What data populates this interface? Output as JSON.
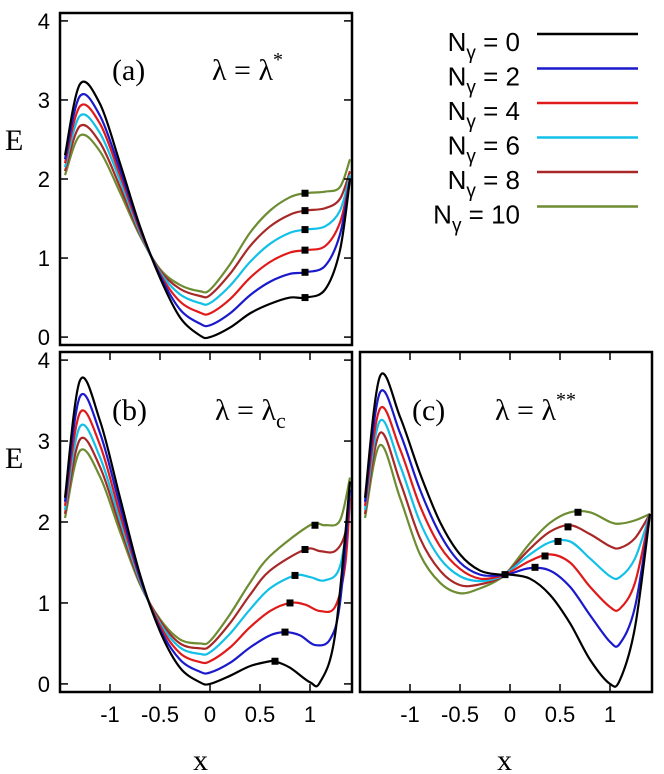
{
  "chart_data": [
    {
      "type": "line",
      "panel_label": "(a)",
      "annotation_prefix": "λ = λ",
      "annotation_sup": "*",
      "ylabel": "E",
      "xlim": [
        -1.5,
        1.42
      ],
      "ylim": [
        -0.1,
        4.1
      ],
      "yticks": [
        "0",
        "1",
        "2",
        "3",
        "4"
      ],
      "series": [
        {
          "name": "0",
          "x": [
            -1.45,
            -1.3,
            -1.1,
            -0.9,
            -0.7,
            -0.5,
            -0.3,
            -0.1,
            0.0,
            0.2,
            0.4,
            0.6,
            0.8,
            0.95,
            1.15,
            1.3,
            1.4
          ],
          "y": [
            2.3,
            3.2,
            2.95,
            2.2,
            1.4,
            0.75,
            0.25,
            0.02,
            0.0,
            0.12,
            0.3,
            0.42,
            0.5,
            0.5,
            0.6,
            1.1,
            2.0
          ],
          "max_x": 0.95,
          "max_y": 0.5
        },
        {
          "name": "2",
          "x": [
            -1.45,
            -1.3,
            -1.1,
            -0.9,
            -0.7,
            -0.5,
            -0.3,
            -0.1,
            0.0,
            0.2,
            0.4,
            0.6,
            0.8,
            0.95,
            1.15,
            1.3,
            1.4
          ],
          "y": [
            2.25,
            3.05,
            2.8,
            2.12,
            1.38,
            0.78,
            0.35,
            0.17,
            0.15,
            0.3,
            0.53,
            0.7,
            0.8,
            0.82,
            0.9,
            1.3,
            2.0
          ],
          "max_x": 0.95,
          "max_y": 0.82
        },
        {
          "name": "4",
          "x": [
            -1.45,
            -1.3,
            -1.1,
            -0.9,
            -0.7,
            -0.5,
            -0.3,
            -0.1,
            0.0,
            0.2,
            0.4,
            0.6,
            0.8,
            0.95,
            1.15,
            1.3,
            1.4
          ],
          "y": [
            2.2,
            2.92,
            2.7,
            2.05,
            1.35,
            0.8,
            0.45,
            0.31,
            0.3,
            0.48,
            0.75,
            0.95,
            1.07,
            1.1,
            1.15,
            1.45,
            2.0
          ],
          "max_x": 0.95,
          "max_y": 1.1
        },
        {
          "name": "6",
          "x": [
            -1.45,
            -1.3,
            -1.1,
            -0.9,
            -0.7,
            -0.5,
            -0.3,
            -0.1,
            0.0,
            0.2,
            0.4,
            0.6,
            0.8,
            0.95,
            1.15,
            1.3,
            1.4
          ],
          "y": [
            2.15,
            2.8,
            2.58,
            1.98,
            1.32,
            0.82,
            0.54,
            0.43,
            0.43,
            0.65,
            0.95,
            1.18,
            1.32,
            1.36,
            1.4,
            1.6,
            2.05
          ],
          "max_x": 0.95,
          "max_y": 1.36
        },
        {
          "name": "8",
          "x": [
            -1.45,
            -1.3,
            -1.1,
            -0.9,
            -0.7,
            -0.5,
            -0.3,
            -0.1,
            0.0,
            0.2,
            0.4,
            0.6,
            0.8,
            0.95,
            1.15,
            1.3,
            1.4
          ],
          "y": [
            2.1,
            2.67,
            2.46,
            1.9,
            1.3,
            0.84,
            0.61,
            0.52,
            0.53,
            0.8,
            1.15,
            1.4,
            1.55,
            1.6,
            1.63,
            1.75,
            2.1
          ],
          "max_x": 0.95,
          "max_y": 1.6
        },
        {
          "name": "10",
          "x": [
            -1.45,
            -1.3,
            -1.1,
            -0.9,
            -0.7,
            -0.5,
            -0.3,
            -0.1,
            0.0,
            0.2,
            0.4,
            0.6,
            0.8,
            0.95,
            1.15,
            1.3,
            1.4
          ],
          "y": [
            2.05,
            2.55,
            2.35,
            1.83,
            1.28,
            0.86,
            0.66,
            0.58,
            0.6,
            0.92,
            1.32,
            1.6,
            1.77,
            1.82,
            1.84,
            1.9,
            2.25
          ],
          "max_x": 0.95,
          "max_y": 1.82
        }
      ]
    },
    {
      "type": "line",
      "panel_label": "(b)",
      "annotation_prefix": "λ = λ",
      "annotation_sub": "c",
      "ylabel": "E",
      "xlim": [
        -1.5,
        1.42
      ],
      "ylim": [
        -0.1,
        4.1
      ],
      "yticks": [
        "0",
        "1",
        "2",
        "3",
        "4"
      ],
      "xticks": [
        "-1",
        "-0.5",
        "0",
        "0.5",
        "1"
      ],
      "series": [
        {
          "name": "0",
          "x": [
            -1.45,
            -1.3,
            -1.1,
            -0.9,
            -0.7,
            -0.5,
            -0.3,
            -0.1,
            0.0,
            0.2,
            0.4,
            0.6,
            0.65,
            0.8,
            1.0,
            1.1,
            1.25,
            1.4
          ],
          "y": [
            2.3,
            3.75,
            3.25,
            2.3,
            1.35,
            0.65,
            0.2,
            0.02,
            0.0,
            0.1,
            0.22,
            0.28,
            0.28,
            0.2,
            0.02,
            0.02,
            0.6,
            2.5
          ],
          "max_x": 0.65,
          "max_y": 0.28
        },
        {
          "name": "2",
          "x": [
            -1.45,
            -1.3,
            -1.1,
            -0.9,
            -0.7,
            -0.5,
            -0.3,
            -0.1,
            0.0,
            0.2,
            0.4,
            0.6,
            0.75,
            0.9,
            1.05,
            1.2,
            1.3,
            1.4
          ],
          "y": [
            2.25,
            3.55,
            3.1,
            2.2,
            1.32,
            0.68,
            0.3,
            0.15,
            0.14,
            0.26,
            0.45,
            0.6,
            0.64,
            0.6,
            0.48,
            0.55,
            1.0,
            2.4
          ],
          "max_x": 0.75,
          "max_y": 0.64
        },
        {
          "name": "4",
          "x": [
            -1.45,
            -1.3,
            -1.1,
            -0.9,
            -0.7,
            -0.5,
            -0.3,
            -0.1,
            0.0,
            0.2,
            0.4,
            0.6,
            0.8,
            0.95,
            1.1,
            1.25,
            1.35,
            1.4
          ],
          "y": [
            2.2,
            3.35,
            2.95,
            2.1,
            1.3,
            0.72,
            0.38,
            0.27,
            0.28,
            0.45,
            0.7,
            0.9,
            1.0,
            0.98,
            0.9,
            0.95,
            1.45,
            2.3
          ],
          "max_x": 0.8,
          "max_y": 1.0
        },
        {
          "name": "6",
          "x": [
            -1.45,
            -1.3,
            -1.1,
            -0.9,
            -0.7,
            -0.5,
            -0.3,
            -0.1,
            0.0,
            0.2,
            0.4,
            0.6,
            0.85,
            1.0,
            1.15,
            1.3,
            1.4
          ],
          "y": [
            2.15,
            3.18,
            2.8,
            2.02,
            1.27,
            0.75,
            0.45,
            0.37,
            0.39,
            0.62,
            0.92,
            1.18,
            1.34,
            1.32,
            1.28,
            1.45,
            2.25
          ],
          "max_x": 0.85,
          "max_y": 1.34
        },
        {
          "name": "8",
          "x": [
            -1.45,
            -1.3,
            -1.1,
            -0.9,
            -0.7,
            -0.5,
            -0.3,
            -0.1,
            0.0,
            0.2,
            0.4,
            0.6,
            0.95,
            1.1,
            1.25,
            1.35,
            1.4
          ],
          "y": [
            2.1,
            3.02,
            2.68,
            1.95,
            1.25,
            0.78,
            0.5,
            0.44,
            0.47,
            0.75,
            1.1,
            1.4,
            1.66,
            1.64,
            1.64,
            1.85,
            2.3
          ],
          "max_x": 0.95,
          "max_y": 1.66
        },
        {
          "name": "10",
          "x": [
            -1.45,
            -1.3,
            -1.1,
            -0.9,
            -0.7,
            -0.5,
            -0.3,
            -0.1,
            0.0,
            0.2,
            0.4,
            0.6,
            1.0,
            1.15,
            1.3,
            1.4
          ],
          "y": [
            2.05,
            2.88,
            2.56,
            1.88,
            1.23,
            0.8,
            0.55,
            0.5,
            0.53,
            0.86,
            1.25,
            1.58,
            1.96,
            1.96,
            2.02,
            2.55
          ],
          "max_x": 1.05,
          "max_y": 1.96
        }
      ]
    },
    {
      "type": "line",
      "panel_label": "(c)",
      "annotation_prefix": "λ = λ",
      "annotation_sup": "**",
      "xlabel": "x",
      "xlim": [
        -1.5,
        1.42
      ],
      "ylim": [
        -0.1,
        4.1
      ],
      "xticks": [
        "-1",
        "-0.5",
        "0",
        "0.5",
        "1"
      ],
      "series": [
        {
          "name": "0",
          "x": [
            -1.45,
            -1.3,
            -1.1,
            -0.9,
            -0.7,
            -0.5,
            -0.3,
            -0.1,
            0.0,
            0.2,
            0.4,
            0.6,
            0.8,
            1.0,
            1.1,
            1.25,
            1.4
          ],
          "y": [
            2.3,
            3.8,
            3.3,
            2.6,
            2.0,
            1.6,
            1.4,
            1.35,
            1.35,
            1.3,
            1.1,
            0.75,
            0.3,
            0.0,
            0.05,
            0.7,
            2.1
          ],
          "max_x": -0.05,
          "max_y": 1.35
        },
        {
          "name": "2",
          "x": [
            -1.45,
            -1.3,
            -1.1,
            -0.9,
            -0.7,
            -0.5,
            -0.3,
            -0.1,
            0.0,
            0.2,
            0.4,
            0.6,
            0.8,
            1.0,
            1.1,
            1.25,
            1.4
          ],
          "y": [
            2.25,
            3.6,
            3.1,
            2.4,
            1.85,
            1.5,
            1.35,
            1.34,
            1.36,
            1.43,
            1.4,
            1.2,
            0.85,
            0.52,
            0.5,
            0.95,
            2.1
          ],
          "max_x": 0.25,
          "max_y": 1.44
        },
        {
          "name": "4",
          "x": [
            -1.45,
            -1.3,
            -1.1,
            -0.9,
            -0.7,
            -0.5,
            -0.3,
            -0.1,
            0.0,
            0.2,
            0.4,
            0.6,
            0.8,
            1.0,
            1.1,
            1.25,
            1.4
          ],
          "y": [
            2.2,
            3.4,
            2.9,
            2.2,
            1.7,
            1.42,
            1.3,
            1.33,
            1.38,
            1.52,
            1.6,
            1.5,
            1.2,
            0.95,
            0.93,
            1.25,
            2.1
          ],
          "max_x": 0.35,
          "max_y": 1.58
        },
        {
          "name": "6",
          "x": [
            -1.45,
            -1.3,
            -1.1,
            -0.9,
            -0.7,
            -0.5,
            -0.3,
            -0.1,
            0.0,
            0.2,
            0.4,
            0.6,
            0.8,
            1.0,
            1.1,
            1.25,
            1.4
          ],
          "y": [
            2.15,
            3.25,
            2.7,
            2.0,
            1.55,
            1.33,
            1.27,
            1.32,
            1.4,
            1.6,
            1.75,
            1.76,
            1.55,
            1.33,
            1.32,
            1.55,
            2.1
          ],
          "max_x": 0.48,
          "max_y": 1.76
        },
        {
          "name": "8",
          "x": [
            -1.45,
            -1.3,
            -1.1,
            -0.9,
            -0.7,
            -0.5,
            -0.3,
            -0.1,
            0.0,
            0.2,
            0.4,
            0.6,
            0.8,
            1.0,
            1.1,
            1.25,
            1.4
          ],
          "y": [
            2.1,
            3.1,
            2.5,
            1.8,
            1.4,
            1.22,
            1.23,
            1.31,
            1.41,
            1.67,
            1.88,
            1.96,
            1.85,
            1.7,
            1.68,
            1.8,
            2.1
          ],
          "max_x": 0.58,
          "max_y": 1.94
        },
        {
          "name": "10",
          "x": [
            -1.45,
            -1.3,
            -1.1,
            -0.9,
            -0.7,
            -0.5,
            -0.3,
            -0.1,
            0.0,
            0.2,
            0.4,
            0.6,
            0.8,
            1.0,
            1.1,
            1.25,
            1.4
          ],
          "y": [
            2.05,
            2.95,
            2.3,
            1.6,
            1.25,
            1.12,
            1.18,
            1.3,
            1.42,
            1.74,
            1.99,
            2.12,
            2.12,
            2.0,
            1.98,
            2.02,
            2.1
          ],
          "max_x": 0.68,
          "max_y": 2.12
        }
      ]
    }
  ],
  "legend": {
    "var": "N",
    "sub": "γ",
    "items": [
      {
        "value": "0",
        "color": "#000000"
      },
      {
        "value": "2",
        "color": "#1a1acc"
      },
      {
        "value": "4",
        "color": "#e01a1a"
      },
      {
        "value": "6",
        "color": "#12c0e8"
      },
      {
        "value": "8",
        "color": "#a82828"
      },
      {
        "value": "10",
        "color": "#6e8c32"
      }
    ]
  }
}
